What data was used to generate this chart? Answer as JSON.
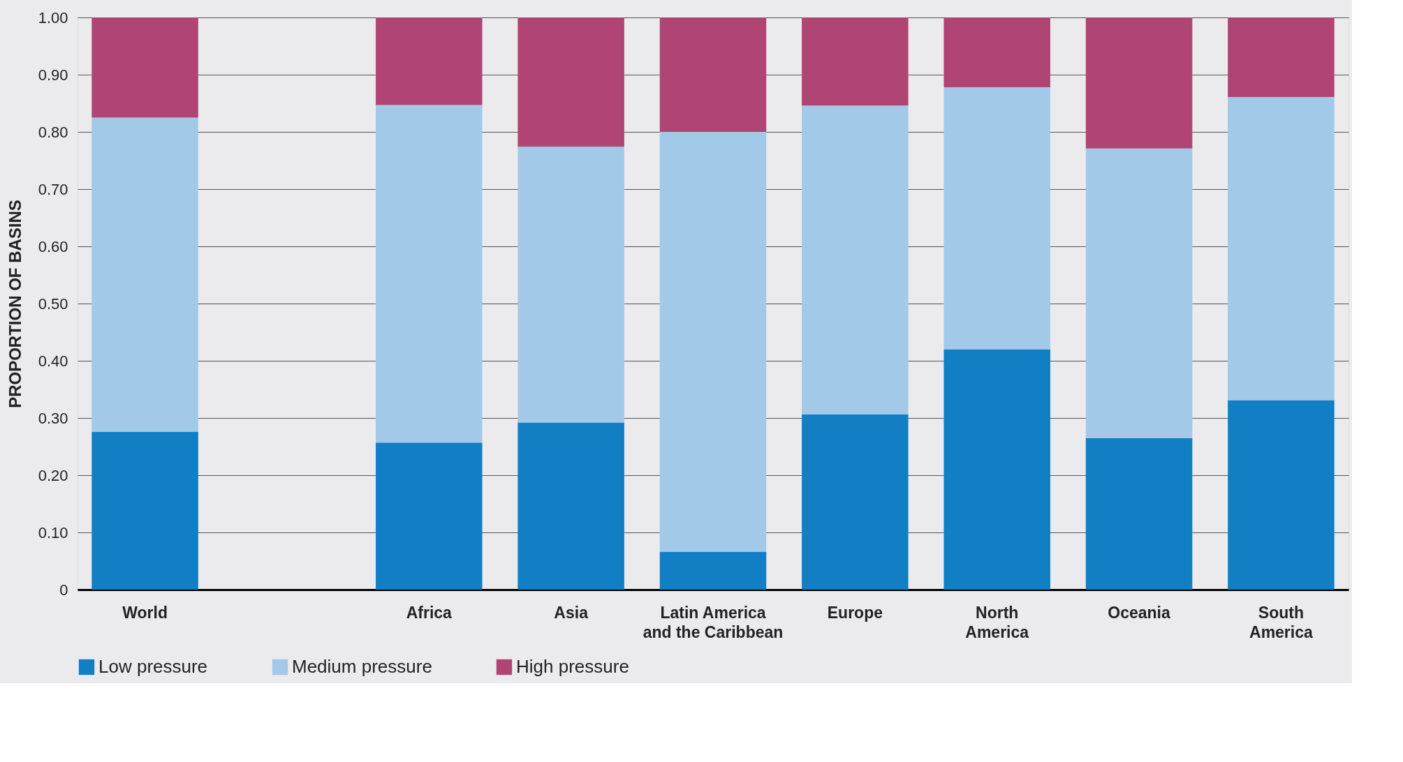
{
  "chart_data": {
    "type": "bar",
    "stacked": true,
    "ylabel": "PROPORTION OF BASINS",
    "categories": [
      "World",
      null,
      "Africa",
      "Asia",
      "Latin America\nand the Caribbean",
      "Europe",
      "North\nAmerica",
      "Oceania",
      "South\nAmerica"
    ],
    "series": [
      {
        "name": "Low pressure",
        "color": "#127ec4",
        "values": [
          0.276,
          null,
          0.257,
          0.292,
          0.066,
          0.306,
          0.42,
          0.265,
          0.331
        ]
      },
      {
        "name": "Medium pressure",
        "color": "#a3c9e8",
        "values": [
          0.549,
          null,
          0.59,
          0.482,
          0.734,
          0.54,
          0.458,
          0.506,
          0.53
        ]
      },
      {
        "name": "High pressure",
        "color": "#b04574",
        "values": [
          0.175,
          null,
          0.153,
          0.226,
          0.2,
          0.154,
          0.122,
          0.229,
          0.139
        ]
      }
    ],
    "ylim": [
      0,
      1
    ],
    "yticks": [
      0,
      {
        "value": 0.1,
        "label": "0.10"
      },
      {
        "value": 0.2,
        "label": "0.20"
      },
      {
        "value": 0.3,
        "label": "0.30"
      },
      {
        "value": 0.4,
        "label": "0.40"
      },
      {
        "value": 0.5,
        "label": "0.50"
      },
      {
        "value": 0.6,
        "label": "0.60"
      },
      {
        "value": 0.7,
        "label": "0.70"
      },
      {
        "value": 0.8,
        "label": "0.80"
      },
      {
        "value": 0.9,
        "label": "0.90"
      },
      {
        "value": 1,
        "label": "1.00"
      }
    ],
    "grid": "y",
    "legend": "bottom left"
  }
}
